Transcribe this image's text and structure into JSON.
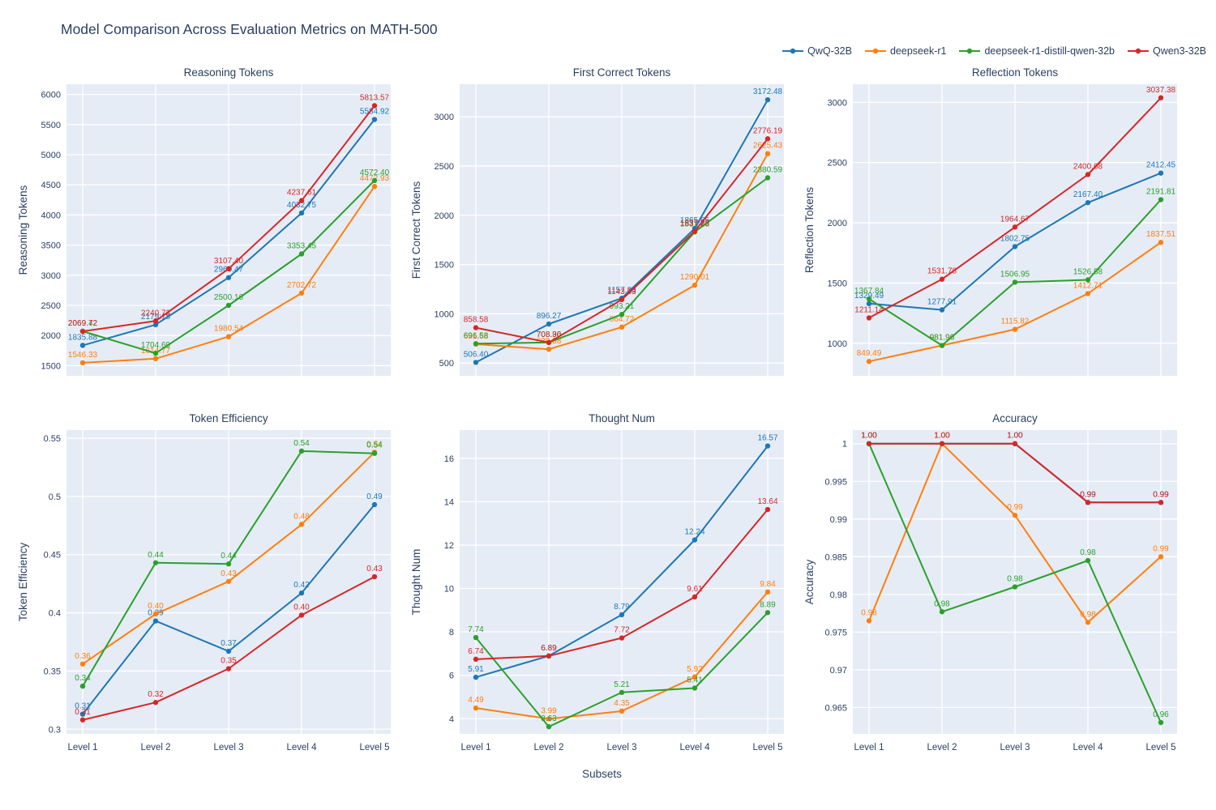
{
  "title": "Model Comparison Across Evaluation Metrics on MATH-500",
  "xlabel": "Subsets",
  "legend": {
    "items": [
      {
        "label": "QwQ-32B",
        "color": "#1f77b4"
      },
      {
        "label": "deepseek-r1",
        "color": "#ff7f0e"
      },
      {
        "label": "deepseek-r1-distill-qwen-32b",
        "color": "#2ca02c"
      },
      {
        "label": "Qwen3-32B",
        "color": "#d62728"
      }
    ]
  },
  "colors": {
    "text": "#2a3f5f",
    "plot_background": "#e5ecf6",
    "grid": "#ffffff"
  },
  "chart_data": [
    {
      "type": "line",
      "title": "Reasoning Tokens",
      "ylabel": "Reasoning Tokens",
      "categories": [
        "Level 1",
        "Level 2",
        "Level 3",
        "Level 4",
        "Level 5"
      ],
      "ylim": [
        1330,
        6170
      ],
      "yticks": [
        1500,
        2000,
        2500,
        3000,
        3500,
        4000,
        4500,
        5000,
        5500,
        6000
      ],
      "ytick_labels": [
        "1500",
        "2000",
        "2500",
        "3000",
        "3500",
        "4000",
        "4500",
        "5000",
        "5500",
        "6000"
      ],
      "show_x_ticklabels": false,
      "grid": true,
      "legend_position": "top-right",
      "series": [
        {
          "name": "QwQ-32B",
          "color": "#1f77b4",
          "values": [
            1835.88,
            2179.18,
            2960.47,
            4032.75,
            5584.92
          ],
          "labels": [
            "1835.88",
            "2179.18",
            "2960.47",
            "4032.75",
            "5584.92"
          ]
        },
        {
          "name": "deepseek-r1",
          "color": "#ff7f0e",
          "values": [
            1546.33,
            1614.77,
            1980.54,
            2702.72,
            4472.93
          ],
          "labels": [
            "1546.33",
            "1614.77",
            "1980.54",
            "2702.72",
            "4472.93"
          ]
        },
        {
          "name": "deepseek-r1-distill-qwen-32b",
          "color": "#2ca02c",
          "values": [
            2069.42,
            1704.69,
            2500.16,
            3353.45,
            4572.4
          ],
          "labels": [
            "2069.42",
            "1704.69",
            "2500.16",
            "3353.45",
            "4572.40"
          ]
        },
        {
          "name": "Qwen3-32B",
          "color": "#d62728",
          "values": [
            2069.72,
            2240.73,
            3107.4,
            4237.61,
            5813.57
          ],
          "labels": [
            "2069.72",
            "2240.73",
            "3107.40",
            "4237.61",
            "5813.57"
          ]
        }
      ]
    },
    {
      "type": "line",
      "title": "First Correct Tokens",
      "ylabel": "First Correct Tokens",
      "categories": [
        "Level 1",
        "Level 2",
        "Level 3",
        "Level 4",
        "Level 5"
      ],
      "ylim": [
        370,
        3330
      ],
      "yticks": [
        500,
        1000,
        1500,
        2000,
        2500,
        3000
      ],
      "ytick_labels": [
        "500",
        "1000",
        "1500",
        "2000",
        "2500",
        "3000"
      ],
      "show_x_ticklabels": false,
      "grid": true,
      "series": [
        {
          "name": "QwQ-32B",
          "color": "#1f77b4",
          "values": [
            506.4,
            896.27,
            1157.33,
            1865.85,
            3172.48
          ],
          "labels": [
            "506.40",
            "896.27",
            "1157.33",
            "1865.85",
            "3172.48"
          ]
        },
        {
          "name": "deepseek-r1",
          "color": "#ff7f0e",
          "values": [
            691.68,
            639.38,
            864.72,
            1290.01,
            2625.43
          ],
          "labels": [
            "691.68",
            "639.38",
            "864.72",
            "1290.01",
            "2625.43"
          ]
        },
        {
          "name": "deepseek-r1-distill-qwen-32b",
          "color": "#2ca02c",
          "values": [
            696.58,
            708.9,
            993.21,
            1831.23,
            2380.59
          ],
          "labels": [
            "696.58",
            "708.90",
            "993.21",
            "1831.23",
            "2380.59"
          ]
        },
        {
          "name": "Qwen3-32B",
          "color": "#d62728",
          "values": [
            858.58,
            708.36,
            1143.53,
            1837.28,
            2776.19
          ],
          "labels": [
            "858.58",
            "708.36",
            "1143.53",
            "1837.28",
            "2776.19"
          ]
        }
      ]
    },
    {
      "type": "line",
      "title": "Reflection Tokens",
      "ylabel": "Reflection Tokens",
      "categories": [
        "Level 1",
        "Level 2",
        "Level 3",
        "Level 4",
        "Level 5"
      ],
      "ylim": [
        730,
        3150
      ],
      "yticks": [
        1000,
        1500,
        2000,
        2500,
        3000
      ],
      "ytick_labels": [
        "1000",
        "1500",
        "2000",
        "2500",
        "3000"
      ],
      "show_x_ticklabels": false,
      "grid": true,
      "series": [
        {
          "name": "QwQ-32B",
          "color": "#1f77b4",
          "values": [
            1329.49,
            1277.91,
            1802.75,
            2167.4,
            2412.45
          ],
          "labels": [
            "1329.49",
            "1277.91",
            "1802.75",
            "2167.40",
            "2412.45"
          ]
        },
        {
          "name": "deepseek-r1",
          "color": "#ff7f0e",
          "values": [
            849.49,
            981.9,
            1115.82,
            1412.71,
            1837.51
          ],
          "labels": [
            "849.49",
            "981.90",
            "1115.82",
            "1412.71",
            "1837.51"
          ]
        },
        {
          "name": "deepseek-r1-distill-qwen-32b",
          "color": "#2ca02c",
          "values": [
            1367.84,
            981.96,
            1506.95,
            1526.58,
            2191.81
          ],
          "labels": [
            "1367.84",
            "981.96",
            "1506.95",
            "1526.58",
            "2191.81"
          ]
        },
        {
          "name": "Qwen3-32B",
          "color": "#d62728",
          "values": [
            1211.14,
            1531.78,
            1964.67,
            2400.68,
            3037.38
          ],
          "labels": [
            "1211.14",
            "1531.78",
            "1964.67",
            "2400.68",
            "3037.38"
          ]
        }
      ]
    },
    {
      "type": "line",
      "title": "Token Efficiency",
      "ylabel": "Token Efficiency",
      "categories": [
        "Level 1",
        "Level 2",
        "Level 3",
        "Level 4",
        "Level 5"
      ],
      "ylim": [
        0.296,
        0.557
      ],
      "yticks": [
        0.3,
        0.35,
        0.4,
        0.45,
        0.5,
        0.55
      ],
      "ytick_labels": [
        "0.3",
        "0.35",
        "0.4",
        "0.45",
        "0.5",
        "0.55"
      ],
      "show_x_ticklabels": true,
      "grid": true,
      "series": [
        {
          "name": "QwQ-32B",
          "color": "#1f77b4",
          "values": [
            0.313,
            0.393,
            0.367,
            0.417,
            0.493
          ],
          "labels": [
            "0.31",
            "0.39",
            "0.37",
            "0.42",
            "0.49"
          ]
        },
        {
          "name": "deepseek-r1",
          "color": "#ff7f0e",
          "values": [
            0.356,
            0.399,
            0.427,
            0.476,
            0.538
          ],
          "labels": [
            "0.36",
            "0.40",
            "0.43",
            "0.48",
            "0.54"
          ]
        },
        {
          "name": "deepseek-r1-distill-qwen-32b",
          "color": "#2ca02c",
          "values": [
            0.337,
            0.443,
            0.442,
            0.539,
            0.537
          ],
          "labels": [
            "0.34",
            "0.44",
            "0.44",
            "0.54",
            "0.54"
          ]
        },
        {
          "name": "Qwen3-32B",
          "color": "#d62728",
          "values": [
            0.308,
            0.323,
            0.352,
            0.398,
            0.431
          ],
          "labels": [
            "0.31",
            "0.32",
            "0.35",
            "0.40",
            "0.43"
          ]
        }
      ]
    },
    {
      "type": "line",
      "title": "Thought Num",
      "ylabel": "Thought Num",
      "xlabel": "Subsets",
      "categories": [
        "Level 1",
        "Level 2",
        "Level 3",
        "Level 4",
        "Level 5"
      ],
      "ylim": [
        3.3,
        17.3
      ],
      "yticks": [
        4,
        6,
        8,
        10,
        12,
        14,
        16
      ],
      "ytick_labels": [
        "4",
        "6",
        "8",
        "10",
        "12",
        "14",
        "16"
      ],
      "show_x_ticklabels": true,
      "grid": true,
      "series": [
        {
          "name": "QwQ-32B",
          "color": "#1f77b4",
          "values": [
            5.91,
            6.89,
            8.79,
            12.24,
            16.57
          ],
          "labels": [
            "5.91",
            "6.89",
            "8.79",
            "12.24",
            "16.57"
          ]
        },
        {
          "name": "deepseek-r1",
          "color": "#ff7f0e",
          "values": [
            4.49,
            3.99,
            4.35,
            5.92,
            9.84
          ],
          "labels": [
            "4.49",
            "3.99",
            "4.35",
            "5.92",
            "9.84"
          ]
        },
        {
          "name": "deepseek-r1-distill-qwen-32b",
          "color": "#2ca02c",
          "values": [
            7.74,
            3.63,
            5.21,
            5.41,
            8.89
          ],
          "labels": [
            "7.74",
            "3.63",
            "5.21",
            "5.41",
            "8.89"
          ]
        },
        {
          "name": "Qwen3-32B",
          "color": "#d62728",
          "values": [
            6.74,
            6.89,
            7.72,
            9.61,
            13.64
          ],
          "labels": [
            "6.74",
            "6.89",
            "7.72",
            "9.61",
            "13.64"
          ]
        }
      ]
    },
    {
      "type": "line",
      "title": "Accuracy",
      "ylabel": "Accuracy",
      "categories": [
        "Level 1",
        "Level 2",
        "Level 3",
        "Level 4",
        "Level 5"
      ],
      "ylim": [
        0.9615,
        1.0018
      ],
      "yticks": [
        0.965,
        0.97,
        0.975,
        0.98,
        0.985,
        0.99,
        0.995,
        1.0
      ],
      "ytick_labels": [
        "0.965",
        "0.97",
        "0.975",
        "0.98",
        "0.985",
        "0.99",
        "0.995",
        "1"
      ],
      "show_x_ticklabels": true,
      "grid": true,
      "series": [
        {
          "name": "QwQ-32B",
          "color": "#1f77b4",
          "values": [
            1.0,
            1.0,
            1.0,
            0.9922,
            0.9922
          ],
          "labels": [
            "1.00",
            "1.00",
            "1.00",
            "0.99",
            "0.99"
          ]
        },
        {
          "name": "deepseek-r1",
          "color": "#ff7f0e",
          "values": [
            0.9765,
            1.0,
            0.9905,
            0.9763,
            0.985
          ],
          "labels": [
            "0.98",
            "1.00",
            "0.99",
            "0.98",
            "0.99"
          ]
        },
        {
          "name": "deepseek-r1-distill-qwen-32b",
          "color": "#2ca02c",
          "values": [
            1.0,
            0.9777,
            0.981,
            0.9845,
            0.963
          ],
          "labels": [
            "1.00",
            "0.98",
            "0.98",
            "0.98",
            "0.96"
          ]
        },
        {
          "name": "Qwen3-32B",
          "color": "#d62728",
          "values": [
            1.0,
            1.0,
            1.0,
            0.9922,
            0.9922
          ],
          "labels": [
            "1.00",
            "1.00",
            "1.00",
            "0.99",
            "0.99"
          ]
        }
      ]
    }
  ]
}
